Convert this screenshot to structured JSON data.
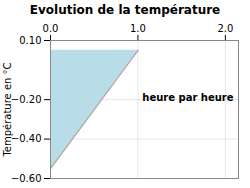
{
  "chart_data": {
    "type": "line",
    "title": "Evolution de la température",
    "ylabel": "Température en °C",
    "x": [
      0,
      1
    ],
    "series": [
      {
        "type": "area",
        "color": "#b8dde8",
        "values": [
          -0.55,
          0.05
        ]
      },
      {
        "type": "line",
        "color": "#aaaaaa",
        "values": [
          -0.55,
          0.05
        ]
      }
    ],
    "annotations": [
      {
        "text": "heure par heure",
        "x": 1.05,
        "y": -0.17
      }
    ],
    "xlim": [
      0,
      2.15
    ],
    "xticks": [
      0,
      1,
      2
    ],
    "ylim": [
      -0.6,
      0.1
    ],
    "yticks": [
      0.1,
      -0.2,
      -0.4,
      -0.6
    ],
    "grid": true
  }
}
